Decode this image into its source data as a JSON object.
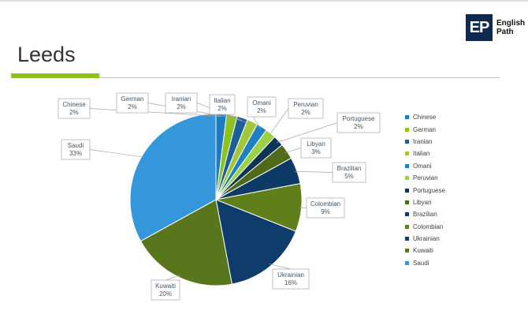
{
  "header": {
    "logo_mark": "EP",
    "logo_line1": "English",
    "logo_line2": "Path",
    "title": "Leeds"
  },
  "chart_data": {
    "type": "pie",
    "start_angle_deg": 90,
    "direction": "clockwise",
    "legend_position": "right",
    "slices": [
      {
        "name": "Chinese",
        "value": 2,
        "label": "2%",
        "color": "#1f7bbf"
      },
      {
        "name": "German",
        "value": 2,
        "label": "2%",
        "color": "#8dc21f"
      },
      {
        "name": "Iranian",
        "value": 2,
        "label": "2%",
        "color": "#1a5f9c"
      },
      {
        "name": "Italian",
        "value": 2,
        "label": "2%",
        "color": "#a2c83a"
      },
      {
        "name": "Omani",
        "value": 2,
        "label": "2%",
        "color": "#1f7fc4"
      },
      {
        "name": "Peruvian",
        "value": 2,
        "label": "2%",
        "color": "#9bd144"
      },
      {
        "name": "Portuguese",
        "value": 2,
        "label": "2%",
        "color": "#0d3557"
      },
      {
        "name": "Libyan",
        "value": 3,
        "label": "3%",
        "color": "#4f6b17"
      },
      {
        "name": "Brazilian",
        "value": 5,
        "label": "5%",
        "color": "#0e3b66"
      },
      {
        "name": "Colombian",
        "value": 9,
        "label": "9%",
        "color": "#5e7f1a"
      },
      {
        "name": "Ukrainian",
        "value": 16,
        "label": "16%",
        "color": "#0f3d6b"
      },
      {
        "name": "Kuwaiti",
        "value": 20,
        "label": "20%",
        "color": "#58761b"
      },
      {
        "name": "Saudi",
        "value": 33,
        "label": "33%",
        "color": "#3597db"
      }
    ]
  }
}
